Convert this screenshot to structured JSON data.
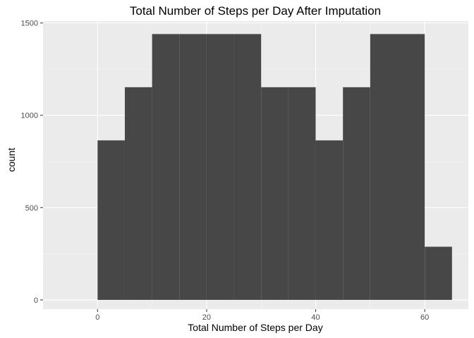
{
  "chart_data": {
    "type": "bar",
    "title": "Total Number of Steps per Day After Imputation",
    "xlabel": "Total Number of Steps per Day",
    "ylabel": "count",
    "xlim": [
      -10,
      68
    ],
    "ylim": [
      -50,
      1510
    ],
    "xticks": [
      0,
      20,
      40,
      60
    ],
    "yticks": [
      0,
      500,
      1000,
      1500
    ],
    "bins": [
      {
        "x0": 0,
        "x1": 5,
        "count": 864
      },
      {
        "x0": 5,
        "x1": 10,
        "count": 1152
      },
      {
        "x0": 10,
        "x1": 15,
        "count": 1440
      },
      {
        "x0": 15,
        "x1": 20,
        "count": 1440
      },
      {
        "x0": 20,
        "x1": 25,
        "count": 1440
      },
      {
        "x0": 25,
        "x1": 30,
        "count": 1440
      },
      {
        "x0": 30,
        "x1": 35,
        "count": 1152
      },
      {
        "x0": 35,
        "x1": 40,
        "count": 1152
      },
      {
        "x0": 40,
        "x1": 45,
        "count": 864
      },
      {
        "x0": 45,
        "x1": 50,
        "count": 1152
      },
      {
        "x0": 50,
        "x1": 55,
        "count": 1440
      },
      {
        "x0": 55,
        "x1": 60,
        "count": 1440
      },
      {
        "x0": 60,
        "x1": 65,
        "count": 288
      }
    ],
    "grid": true,
    "colors": {
      "panel": "#ebebeb",
      "grid_major": "#ffffff",
      "grid_minor": "#f5f5f5",
      "bar": "#474747",
      "tick": "#333333"
    }
  }
}
